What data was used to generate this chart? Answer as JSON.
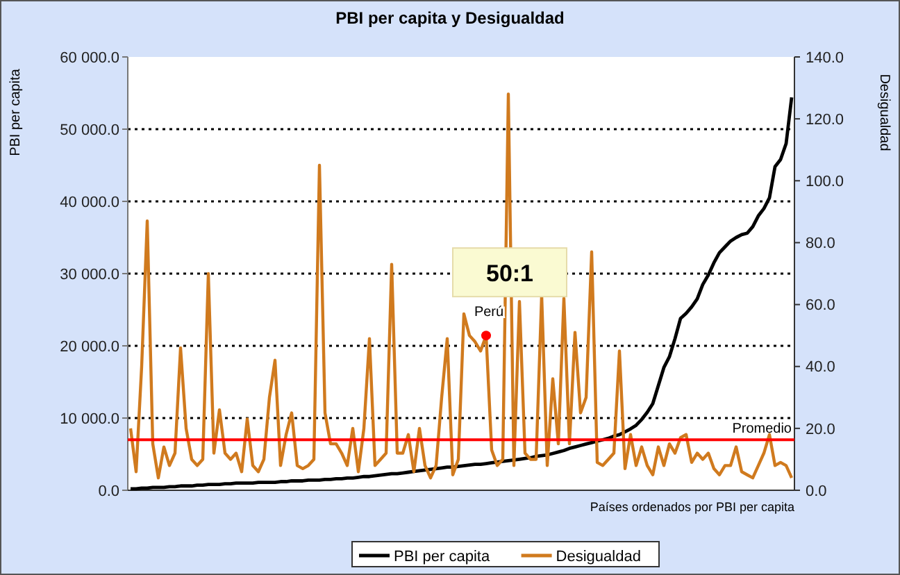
{
  "chart_data": {
    "type": "line",
    "title": "PBI per capita y Desigualdad",
    "xlabel": "Países ordenados por PBI per capita",
    "ylabel": "PBI per capita",
    "y2label": "Desigualdad",
    "categories": [
      null,
      null,
      null,
      null,
      null,
      null,
      null,
      null,
      null,
      null,
      null,
      null,
      null,
      null,
      null,
      null,
      null,
      null,
      null,
      null,
      null,
      null,
      null,
      null,
      null,
      null,
      null,
      null,
      null,
      null,
      null,
      null,
      null,
      null,
      null,
      null,
      null,
      null,
      null,
      null,
      null,
      null,
      null,
      null,
      null,
      null,
      null,
      null,
      null,
      null,
      null,
      null,
      null,
      null,
      null,
      null,
      null,
      null,
      null,
      null,
      null,
      null,
      null,
      null,
      null,
      null,
      null,
      null,
      null,
      null,
      null,
      null,
      null,
      null,
      null,
      null,
      null,
      null,
      null,
      null,
      null,
      null,
      null,
      null,
      null,
      null,
      null,
      null,
      null,
      null,
      null,
      null,
      null,
      null,
      null,
      null,
      null,
      null,
      null,
      null,
      null,
      null,
      null,
      null,
      null,
      null,
      null,
      null,
      null,
      null,
      null,
      null,
      null,
      null,
      null,
      null,
      null,
      null,
      null,
      null
    ],
    "series": [
      {
        "name": "PBI per capita",
        "color": "#000000",
        "values": [
          200,
          200,
          300,
          300,
          400,
          400,
          400,
          500,
          500,
          600,
          600,
          600,
          700,
          700,
          800,
          800,
          800,
          900,
          900,
          1000,
          1000,
          1000,
          1000,
          1100,
          1100,
          1100,
          1100,
          1200,
          1200,
          1300,
          1300,
          1300,
          1400,
          1400,
          1400,
          1500,
          1500,
          1600,
          1600,
          1700,
          1700,
          1800,
          1900,
          1900,
          2000,
          2100,
          2200,
          2300,
          2300,
          2400,
          2500,
          2600,
          2700,
          2800,
          2900,
          3000,
          3100,
          3200,
          3200,
          3300,
          3400,
          3500,
          3600,
          3600,
          3700,
          3800,
          3900,
          4000,
          4100,
          4200,
          4300,
          4400,
          4500,
          4700,
          4800,
          4900,
          5100,
          5300,
          5500,
          5800,
          6000,
          6200,
          6400,
          6600,
          6800,
          7000,
          7200,
          7500,
          7700,
          8100,
          8500,
          9000,
          9800,
          10800,
          12000,
          14500,
          17000,
          18500,
          21000,
          23800,
          24500,
          25400,
          26500,
          28500,
          29800,
          31500,
          32900,
          33700,
          34500,
          35000,
          35400,
          35600,
          36500,
          38000,
          39000,
          40500,
          44800,
          45800,
          48000,
          54400
        ]
      },
      {
        "name": "Desigualdad",
        "color": "#d07a1e",
        "axis": "y2",
        "values": [
          20,
          6,
          40,
          87,
          15,
          4,
          14,
          8,
          12,
          46,
          20,
          10,
          8,
          10,
          70,
          12,
          26,
          12,
          10,
          12,
          6,
          23,
          8,
          6,
          10,
          30,
          42,
          8,
          18,
          25,
          8,
          7,
          8,
          10,
          105,
          25,
          15,
          15,
          12,
          8,
          20,
          6,
          20,
          49,
          8,
          10,
          12,
          73,
          12,
          12,
          18,
          6,
          20,
          8,
          4,
          8,
          30,
          49,
          5,
          10,
          57,
          50,
          48,
          45,
          50,
          13,
          8,
          10,
          128,
          8,
          61,
          12,
          10,
          10,
          63,
          8,
          36,
          15,
          62,
          15,
          51,
          25,
          30,
          77,
          9,
          8,
          10,
          12,
          45,
          7,
          18,
          8,
          14,
          8,
          5,
          14,
          8,
          15,
          12,
          17,
          18,
          9,
          12,
          10,
          12,
          7,
          5,
          8,
          8,
          14,
          6,
          5,
          4,
          8,
          12,
          18,
          8,
          9,
          8,
          4
        ]
      },
      {
        "name": "Perú",
        "type": "scatter",
        "color": "#ff0000",
        "axis": "y2",
        "marker": "circle",
        "values": [
          null,
          null,
          null,
          null,
          null,
          null,
          null,
          null,
          null,
          null,
          null,
          null,
          null,
          null,
          null,
          null,
          null,
          null,
          null,
          null,
          null,
          null,
          null,
          null,
          null,
          null,
          null,
          null,
          null,
          null,
          null,
          null,
          null,
          null,
          null,
          null,
          null,
          null,
          null,
          null,
          null,
          null,
          null,
          null,
          null,
          null,
          null,
          null,
          null,
          null,
          null,
          null,
          null,
          null,
          null,
          null,
          null,
          null,
          null,
          null,
          null,
          null,
          null,
          null,
          50,
          null,
          null,
          null,
          null,
          null,
          null,
          null,
          null,
          null,
          null,
          null,
          null,
          null,
          null,
          null,
          null,
          null,
          null,
          null,
          null,
          null,
          null,
          null,
          null,
          null,
          null,
          null,
          null,
          null,
          null,
          null,
          null,
          null,
          null,
          null,
          null,
          null,
          null,
          null,
          null,
          null,
          null,
          null,
          null,
          null,
          null,
          null,
          null,
          null,
          null,
          null,
          null,
          null,
          null,
          null
        ]
      }
    ],
    "ylim": [
      0,
      60000
    ],
    "yticks": [
      {
        "value": 0,
        "label": "0.0"
      },
      {
        "value": 10000,
        "label": "10 000.0"
      },
      {
        "value": 20000,
        "label": "20 000.0"
      },
      {
        "value": 30000,
        "label": "30 000.0"
      },
      {
        "value": 40000,
        "label": "40 000.0"
      },
      {
        "value": 50000,
        "label": "50 000.0"
      },
      {
        "value": 60000,
        "label": "60 000.0"
      }
    ],
    "y2lim": [
      0,
      140
    ],
    "y2ticks": [
      {
        "value": 0,
        "label": "0.0"
      },
      {
        "value": 20,
        "label": "20.0"
      },
      {
        "value": 40,
        "label": "40.0"
      },
      {
        "value": 60,
        "label": "60.0"
      },
      {
        "value": 80,
        "label": "80.0"
      },
      {
        "value": 100,
        "label": "100.0"
      },
      {
        "value": 120,
        "label": "120.0"
      },
      {
        "value": 140,
        "label": "140.0"
      }
    ],
    "ref_lines": [
      {
        "axis": "y",
        "value": 7000,
        "label": "Promedio",
        "color": "#ff0000"
      }
    ],
    "annotations": [
      "50:1"
    ],
    "grid": "y",
    "legend": "bottom"
  }
}
